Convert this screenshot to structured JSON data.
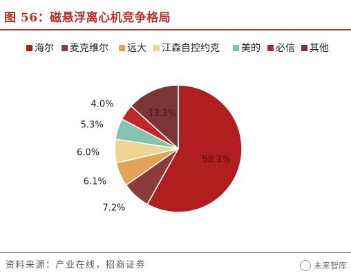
{
  "title": "图 56：磁悬浮离心机竞争格局",
  "source": "资料来源：产业在线，招商证券",
  "watermark": "未来智库",
  "chart_data": {
    "type": "pie",
    "slices": [
      {
        "label": "海尔",
        "value": 58.1,
        "display": "58.1%",
        "color": "#b01e1f"
      },
      {
        "label": "麦克维尔",
        "value": 7.2,
        "display": "7.2%",
        "color": "#8b3b3a"
      },
      {
        "label": "远大",
        "value": 6.1,
        "display": "6.1%",
        "color": "#e3a15a"
      },
      {
        "label": "江森自控约克",
        "value": 6.0,
        "display": "6.0%",
        "color": "#ecd593"
      },
      {
        "label": "美的",
        "value": 5.3,
        "display": "5.3%",
        "color": "#84c3b0"
      },
      {
        "label": "必信",
        "value": 4.0,
        "display": "4.0%",
        "color": "#c0272d"
      },
      {
        "label": "其他",
        "value": 13.3,
        "display": "13.3%",
        "color": "#7a3636"
      }
    ],
    "legend_position": "top"
  }
}
